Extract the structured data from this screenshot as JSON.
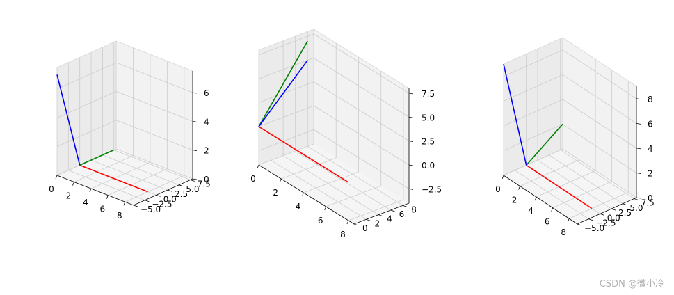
{
  "colors": {
    "pane": "#f2f2f2",
    "grid": "#cccccc",
    "x_axis": "#ff0000",
    "y_axis": "#008000",
    "z_axis": "#0000ff"
  },
  "chart_data": [
    {
      "type": "line3d",
      "segments": [
        {
          "color": "red",
          "from": [
            0,
            0,
            0
          ],
          "to": [
            8,
            0,
            0
          ]
        },
        {
          "color": "green",
          "from": [
            0,
            0,
            0
          ],
          "to": [
            0,
            7.5,
            0
          ]
        },
        {
          "color": "blue",
          "from": [
            0,
            0,
            0
          ],
          "to": [
            0,
            -5,
            7
          ]
        }
      ],
      "xlim": [
        0,
        9
      ],
      "ylim": [
        -5,
        8
      ],
      "zlim": [
        0,
        7.5
      ],
      "xticks": [
        "0",
        "2",
        "4",
        "6",
        "8"
      ],
      "yticks": [
        "7.5",
        "5.0",
        "2.5",
        "0.0",
        "−2.5",
        "−5.0"
      ],
      "zticks": [
        "0",
        "2",
        "4",
        "6"
      ]
    },
    {
      "type": "line3d",
      "segments": [
        {
          "color": "red",
          "from": [
            0,
            0,
            0
          ],
          "to": [
            8,
            0,
            0
          ]
        },
        {
          "color": "green",
          "from": [
            0,
            0,
            0
          ],
          "to": [
            0,
            8,
            7
          ]
        },
        {
          "color": "blue",
          "from": [
            0,
            0,
            0
          ],
          "to": [
            0,
            8,
            5
          ]
        }
      ],
      "xlim": [
        0,
        8.5
      ],
      "ylim": [
        0,
        9
      ],
      "zlim": [
        -4,
        8
      ],
      "xticks": [
        "0",
        "2",
        "4",
        "6",
        "8"
      ],
      "yticks": [
        "8",
        "6",
        "4",
        "2",
        "0"
      ],
      "zticks": [
        "7.5",
        "5.0",
        "2.5",
        "0.0",
        "−2.5"
      ]
    },
    {
      "type": "line3d",
      "segments": [
        {
          "color": "red",
          "from": [
            0,
            0,
            0
          ],
          "to": [
            8,
            0,
            0
          ]
        },
        {
          "color": "green",
          "from": [
            0,
            0,
            0
          ],
          "to": [
            0,
            8,
            2
          ]
        },
        {
          "color": "blue",
          "from": [
            0,
            0,
            0
          ],
          "to": [
            0,
            -5,
            9
          ]
        }
      ],
      "xlim": [
        0,
        9
      ],
      "ylim": [
        -5,
        8
      ],
      "zlim": [
        0,
        9
      ],
      "xticks": [
        "0",
        "2",
        "4",
        "6",
        "8"
      ],
      "yticks": [
        "7.5",
        "5.0",
        "2.5",
        "0.0",
        "−2.5",
        "−5.0"
      ],
      "zticks": [
        "0",
        "2",
        "4",
        "6",
        "8"
      ]
    }
  ],
  "watermark": "CSDN @微小冷"
}
